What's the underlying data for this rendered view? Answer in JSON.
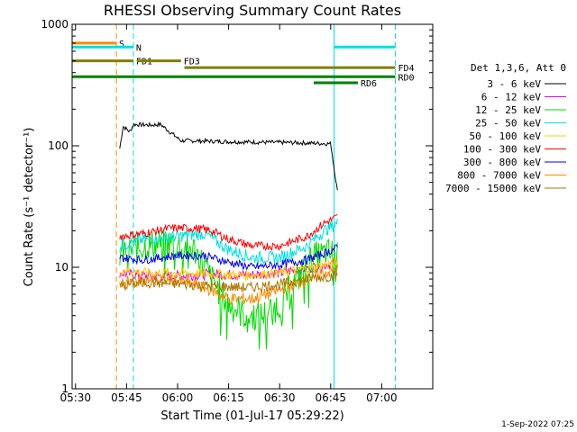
{
  "chart_data": {
    "type": "line",
    "title": "RHESSI Observing Summary Count Rates",
    "xlabel": "Start Time (01-Jul-17 05:29:22)",
    "ylabel": "Count Rate (s⁻¹ detector⁻¹)",
    "ylog": true,
    "xlim": [
      "05:29",
      "07:15"
    ],
    "ylim": [
      1,
      1000
    ],
    "x_ticks": [
      "05:30",
      "05:45",
      "06:00",
      "06:15",
      "06:30",
      "06:45",
      "07:00"
    ],
    "y_ticks": [
      "1",
      "10",
      "100",
      "1000"
    ],
    "legend_title": "Det 1,3,6, Att 0",
    "legend_position": "right",
    "footer": "1-Sep-2022 07:25",
    "series": [
      {
        "name": "3 - 6 keV",
        "color": "#000000",
        "x": [
          "05:43",
          "05:44",
          "05:46",
          "05:47",
          "05:52",
          "05:55",
          "06:01",
          "06:05",
          "06:15",
          "06:25",
          "06:35",
          "06:45",
          "06:47"
        ],
        "y": [
          95,
          145,
          130,
          150,
          148,
          150,
          110,
          110,
          108,
          107,
          106,
          104,
          42
        ]
      },
      {
        "name": "6 - 12 keV",
        "color": "#e000e0",
        "x": [
          "05:43",
          "05:50",
          "06:00",
          "06:10",
          "06:20",
          "06:30",
          "06:40",
          "06:47"
        ],
        "y": [
          9,
          8.5,
          8.5,
          8.8,
          8.6,
          9,
          10,
          11
        ]
      },
      {
        "name": "12 - 25 keV",
        "color": "#00dd00",
        "x": [
          "05:43",
          "05:50",
          "05:58",
          "06:05",
          "06:10",
          "06:15",
          "06:20",
          "06:25",
          "06:30",
          "06:35",
          "06:40",
          "06:44",
          "06:47"
        ],
        "y": [
          13,
          15,
          16,
          14,
          8,
          5,
          4,
          4,
          5,
          8,
          12,
          13,
          13
        ]
      },
      {
        "name": "25 - 50 keV",
        "color": "#00e0e0",
        "x": [
          "05:43",
          "05:50",
          "06:00",
          "06:08",
          "06:15",
          "06:22",
          "06:30",
          "06:38",
          "06:43",
          "06:47"
        ],
        "y": [
          15,
          17,
          18,
          19,
          14,
          12,
          12,
          15,
          20,
          23
        ]
      },
      {
        "name": "50 - 100 keV",
        "color": "#ffcc00",
        "x": [
          "05:43",
          "05:50",
          "06:00",
          "06:10",
          "06:20",
          "06:30",
          "06:40",
          "06:47"
        ],
        "y": [
          9.5,
          9,
          9,
          8.8,
          8.6,
          9,
          10,
          11
        ]
      },
      {
        "name": "100 - 300 keV",
        "color": "#ff0000",
        "x": [
          "05:43",
          "05:50",
          "05:58",
          "06:05",
          "06:10",
          "06:15",
          "06:22",
          "06:30",
          "06:38",
          "06:43",
          "06:47"
        ],
        "y": [
          18,
          19,
          21,
          21,
          20,
          17,
          15,
          15,
          18,
          23,
          26
        ]
      },
      {
        "name": "300 - 800 keV",
        "color": "#0000ee",
        "x": [
          "05:43",
          "05:50",
          "06:00",
          "06:08",
          "06:15",
          "06:22",
          "06:30",
          "06:38",
          "06:43",
          "06:47"
        ],
        "y": [
          12,
          11.5,
          12.5,
          12.5,
          11,
          10,
          10.5,
          11.5,
          13,
          14.5
        ]
      },
      {
        "name": "800 - 7000 keV",
        "color": "#ff8800",
        "x": [
          "05:43",
          "05:50",
          "06:00",
          "06:05",
          "06:10",
          "06:15",
          "06:22",
          "06:30",
          "06:38",
          "06:43",
          "06:47"
        ],
        "y": [
          7.5,
          7.8,
          7.8,
          7.2,
          6.5,
          5.5,
          5.5,
          6.5,
          8,
          9,
          9.5
        ]
      },
      {
        "name": "7000 - 15000 keV",
        "color": "#aa7700",
        "x": [
          "05:43",
          "05:50",
          "06:00",
          "06:10",
          "06:20",
          "06:30",
          "06:40",
          "06:47"
        ],
        "y": [
          7,
          7.5,
          7.3,
          7,
          6.8,
          7.2,
          8.2,
          8.5
        ]
      }
    ],
    "annotations": {
      "vlines": [
        {
          "x": "05:29",
          "color": "#00e0e0",
          "style": "solid"
        },
        {
          "x": "05:42",
          "color": "#ff8800",
          "style": "dashed"
        },
        {
          "x": "05:47",
          "color": "#00e0e0",
          "style": "dashed"
        },
        {
          "x": "06:46",
          "color": "#00e0e0",
          "style": "solid"
        },
        {
          "x": "07:04",
          "color": "#00e0e0",
          "style": "dashed"
        }
      ],
      "bars": [
        {
          "label": "S",
          "x0": "05:29",
          "x1": "05:42",
          "y": 700,
          "color": "#ff8800",
          "label_color": "#ff8800"
        },
        {
          "label": "N",
          "x0": "05:29",
          "x1": "05:47",
          "y": 650,
          "color": "#00e0e0",
          "label_color": "#00e0e0"
        },
        {
          "label": "",
          "x0": "06:46",
          "x1": "07:04",
          "y": 650,
          "color": "#00e0e0",
          "label_color": "#00e0e0"
        },
        {
          "label": "FD1",
          "x0": "05:29",
          "x1": "05:47",
          "y": 500,
          "color": "#808000",
          "label_color": "#808000"
        },
        {
          "label": "FD3",
          "x0": "05:48",
          "x1": "06:01",
          "y": 500,
          "color": "#808000",
          "label_color": "#808000"
        },
        {
          "label": "FD4",
          "x0": "06:02",
          "x1": "07:04",
          "y": 440,
          "color": "#808000",
          "label_color": "#808000"
        },
        {
          "label": "RD0",
          "x0": "05:29",
          "x1": "07:04",
          "y": 370,
          "color": "#008000",
          "label_color": "#008000"
        },
        {
          "label": "RD6",
          "x0": "06:40",
          "x1": "06:53",
          "y": 330,
          "color": "#008000",
          "label_color": "#008000"
        }
      ]
    }
  }
}
